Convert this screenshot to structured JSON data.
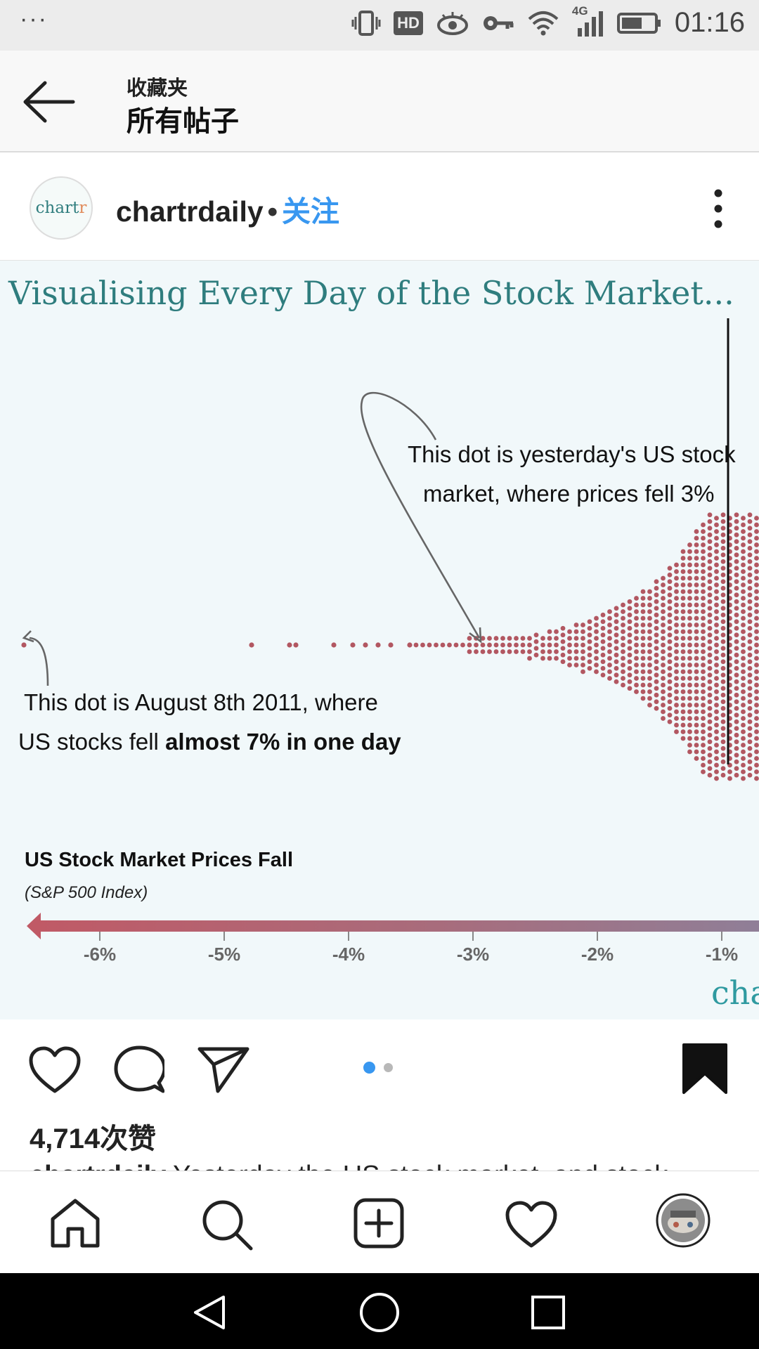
{
  "status_bar": {
    "dots": "···",
    "hd": "HD",
    "network": "4G",
    "time": "01:16"
  },
  "top_bar": {
    "subtitle": "收藏夹",
    "title": "所有帖子"
  },
  "post_header": {
    "avatar_text_main": "chart",
    "avatar_text_accent": "r",
    "username": "chartrdaily",
    "separator": "•",
    "follow": "关注"
  },
  "post_image": {
    "title": "Visualising Every Day of the Stock Market...",
    "annotation_1_line_1": "This dot is yesterday's US stock",
    "annotation_1_line_2": "market, where prices fell 3%",
    "annotation_2_line_1": "This dot is August 8th 2011, where",
    "annotation_2_line_2_normal": "US stocks fell ",
    "annotation_2_line_2_bold": "almost 7% in one day",
    "axis_title": "US Stock Market Prices Fall",
    "axis_subtitle": "(S&P 500 Index)",
    "watermark": "cha"
  },
  "chart_data": {
    "type": "scatter",
    "title": "Visualising Every Day of the Stock Market...",
    "xlabel": "US Stock Market Prices Fall (S&P 500 Index)",
    "ticks": [
      "-6%",
      "-5%",
      "-4%",
      "-3%",
      "-2%",
      "-1%"
    ],
    "tick_values": [
      -6,
      -5,
      -4,
      -3,
      -2,
      -1
    ],
    "xlim": [
      -6.7,
      -0.8
    ],
    "marker_line_at": -1,
    "single_day_points": [
      -6.6,
      -4.8,
      -4.5,
      -4.45,
      -4.15,
      -4.0,
      -3.9,
      -3.8,
      -3.7,
      -3.55
    ],
    "highlighted_points": [
      {
        "label": "yesterday",
        "value": -3.0
      },
      {
        "label": "August 8th 2011",
        "value": -6.66
      }
    ],
    "density_rule": "bin count grows exponentially from about -3.5% toward -1%"
  },
  "post_actions": {
    "page_dots": 2,
    "active_page": 1,
    "likes": "4,714次赞",
    "caption_user": "chartrdaily",
    "caption_text": " Yesterday the US stock market, and stock"
  },
  "colors": {
    "accent_blue": "#3897f0",
    "chart_teal": "#2f7d7e",
    "dot_red": "#b25761",
    "chart_bg": "#f1f8fa"
  }
}
